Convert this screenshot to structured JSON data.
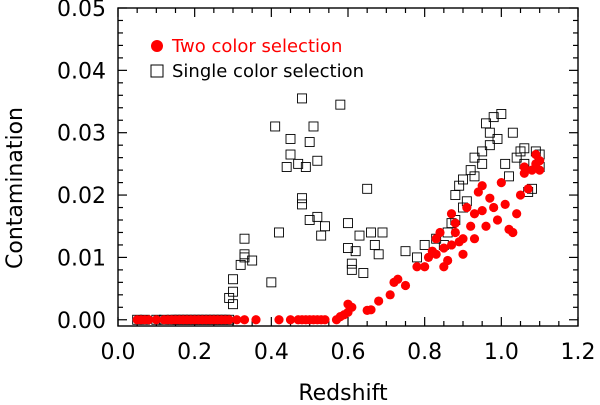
{
  "chart_data": {
    "type": "scatter",
    "title": "",
    "xlabel": "Redshift",
    "ylabel": "Contamination",
    "xlim": [
      0.0,
      1.2
    ],
    "ylim": [
      -0.001,
      0.05
    ],
    "xticks": [
      0.0,
      0.2,
      0.4,
      0.6,
      0.8,
      1.0,
      1.2
    ],
    "xtick_labels": [
      "0.0",
      "0.2",
      "0.4",
      "0.6",
      "0.8",
      "1.0",
      "1.2"
    ],
    "yticks": [
      0.0,
      0.01,
      0.02,
      0.03,
      0.04,
      0.05
    ],
    "ytick_labels": [
      "0.00",
      "0.01",
      "0.02",
      "0.03",
      "0.04",
      "0.05"
    ],
    "legend_position": "top-left",
    "series": [
      {
        "name": "Two color selection",
        "marker": "filled-circle",
        "color": "#ff0000",
        "points": [
          [
            0.05,
            0
          ],
          [
            0.06,
            0
          ],
          [
            0.07,
            0
          ],
          [
            0.08,
            0
          ],
          [
            0.1,
            0
          ],
          [
            0.12,
            0
          ],
          [
            0.13,
            0
          ],
          [
            0.14,
            0
          ],
          [
            0.15,
            0
          ],
          [
            0.16,
            0
          ],
          [
            0.17,
            0
          ],
          [
            0.18,
            0
          ],
          [
            0.19,
            0
          ],
          [
            0.2,
            0
          ],
          [
            0.21,
            0
          ],
          [
            0.22,
            0
          ],
          [
            0.23,
            0
          ],
          [
            0.24,
            0
          ],
          [
            0.25,
            0
          ],
          [
            0.26,
            0
          ],
          [
            0.27,
            0
          ],
          [
            0.28,
            0
          ],
          [
            0.29,
            0
          ],
          [
            0.31,
            0
          ],
          [
            0.33,
            0
          ],
          [
            0.36,
            0
          ],
          [
            0.42,
            0
          ],
          [
            0.45,
            0
          ],
          [
            0.47,
            0
          ],
          [
            0.48,
            0
          ],
          [
            0.49,
            0
          ],
          [
            0.5,
            0
          ],
          [
            0.51,
            0
          ],
          [
            0.52,
            0
          ],
          [
            0.53,
            0
          ],
          [
            0.54,
            0
          ],
          [
            0.57,
            0
          ],
          [
            0.58,
            0.0005
          ],
          [
            0.59,
            0.0008
          ],
          [
            0.6,
            0.0012
          ],
          [
            0.61,
            0.002
          ],
          [
            0.6,
            0.0025
          ],
          [
            0.65,
            0.0015
          ],
          [
            0.66,
            0.0016
          ],
          [
            0.68,
            0.003
          ],
          [
            0.71,
            0.004
          ],
          [
            0.72,
            0.006
          ],
          [
            0.73,
            0.0065
          ],
          [
            0.75,
            0.0055
          ],
          [
            0.78,
            0.0085
          ],
          [
            0.8,
            0.0085
          ],
          [
            0.81,
            0.01
          ],
          [
            0.82,
            0.011
          ],
          [
            0.83,
            0.013
          ],
          [
            0.83,
            0.0105
          ],
          [
            0.84,
            0.014
          ],
          [
            0.85,
            0.0115
          ],
          [
            0.85,
            0.0085
          ],
          [
            0.86,
            0.0095
          ],
          [
            0.87,
            0.012
          ],
          [
            0.87,
            0.017
          ],
          [
            0.88,
            0.0155
          ],
          [
            0.88,
            0.014
          ],
          [
            0.89,
            0.0125
          ],
          [
            0.9,
            0.0105
          ],
          [
            0.9,
            0.013
          ],
          [
            0.91,
            0.018
          ],
          [
            0.92,
            0.015
          ],
          [
            0.93,
            0.017
          ],
          [
            0.93,
            0.013
          ],
          [
            0.94,
            0.0205
          ],
          [
            0.95,
            0.0175
          ],
          [
            0.95,
            0.0215
          ],
          [
            0.96,
            0.015
          ],
          [
            0.97,
            0.0195
          ],
          [
            0.98,
            0.018
          ],
          [
            0.99,
            0.016
          ],
          [
            1.0,
            0.022
          ],
          [
            1.01,
            0.0185
          ],
          [
            1.02,
            0.0145
          ],
          [
            1.03,
            0.014
          ],
          [
            1.04,
            0.017
          ],
          [
            1.05,
            0.02
          ],
          [
            1.06,
            0.0235
          ],
          [
            1.06,
            0.0245
          ],
          [
            1.07,
            0.021
          ],
          [
            1.08,
            0.024
          ],
          [
            1.09,
            0.025
          ],
          [
            1.09,
            0.0265
          ],
          [
            1.1,
            0.0255
          ],
          [
            1.1,
            0.024
          ]
        ]
      },
      {
        "name": "Single color selection",
        "marker": "open-square",
        "color": "#000000",
        "points": [
          [
            0.05,
            0
          ],
          [
            0.07,
            0
          ],
          [
            0.1,
            0
          ],
          [
            0.12,
            0
          ],
          [
            0.14,
            0
          ],
          [
            0.15,
            0
          ],
          [
            0.16,
            0
          ],
          [
            0.17,
            0
          ],
          [
            0.18,
            0
          ],
          [
            0.19,
            0
          ],
          [
            0.2,
            0
          ],
          [
            0.21,
            0
          ],
          [
            0.22,
            0
          ],
          [
            0.23,
            0
          ],
          [
            0.24,
            0
          ],
          [
            0.25,
            0
          ],
          [
            0.26,
            0
          ],
          [
            0.27,
            0
          ],
          [
            0.28,
            0
          ],
          [
            0.29,
            0
          ],
          [
            0.29,
            0.0035
          ],
          [
            0.3,
            0.0025
          ],
          [
            0.3,
            0.0045
          ],
          [
            0.3,
            0.0065
          ],
          [
            0.32,
            0.0088
          ],
          [
            0.33,
            0.01
          ],
          [
            0.33,
            0.0105
          ],
          [
            0.33,
            0.013
          ],
          [
            0.35,
            0.0095
          ],
          [
            0.4,
            0.006
          ],
          [
            0.41,
            0.031
          ],
          [
            0.42,
            0.014
          ],
          [
            0.44,
            0.0245
          ],
          [
            0.45,
            0.029
          ],
          [
            0.45,
            0.0265
          ],
          [
            0.47,
            0.025
          ],
          [
            0.48,
            0.0355
          ],
          [
            0.48,
            0.0195
          ],
          [
            0.48,
            0.0185
          ],
          [
            0.49,
            0.0245
          ],
          [
            0.5,
            0.0285
          ],
          [
            0.5,
            0.016
          ],
          [
            0.51,
            0.031
          ],
          [
            0.52,
            0.0255
          ],
          [
            0.52,
            0.0165
          ],
          [
            0.53,
            0.0135
          ],
          [
            0.54,
            0.015
          ],
          [
            0.58,
            0.0345
          ],
          [
            0.6,
            0.0155
          ],
          [
            0.6,
            0.0115
          ],
          [
            0.61,
            0.008
          ],
          [
            0.61,
            0.009
          ],
          [
            0.62,
            0.011
          ],
          [
            0.63,
            0.0135
          ],
          [
            0.64,
            0.0075
          ],
          [
            0.65,
            0.021
          ],
          [
            0.66,
            0.014
          ],
          [
            0.67,
            0.012
          ],
          [
            0.68,
            0.0105
          ],
          [
            0.69,
            0.014
          ],
          [
            0.75,
            0.011
          ],
          [
            0.78,
            0.01
          ],
          [
            0.8,
            0.012
          ],
          [
            0.83,
            0.013
          ],
          [
            0.85,
            0.012
          ],
          [
            0.86,
            0.014
          ],
          [
            0.87,
            0.0155
          ],
          [
            0.88,
            0.016
          ],
          [
            0.88,
            0.02
          ],
          [
            0.89,
            0.0215
          ],
          [
            0.9,
            0.0225
          ],
          [
            0.9,
            0.018
          ],
          [
            0.91,
            0.019
          ],
          [
            0.92,
            0.024
          ],
          [
            0.93,
            0.023
          ],
          [
            0.93,
            0.026
          ],
          [
            0.95,
            0.027
          ],
          [
            0.95,
            0.025
          ],
          [
            0.96,
            0.0315
          ],
          [
            0.97,
            0.028
          ],
          [
            0.97,
            0.03
          ],
          [
            0.98,
            0.0325
          ],
          [
            0.99,
            0.029
          ],
          [
            1.0,
            0.033
          ],
          [
            1.01,
            0.025
          ],
          [
            1.02,
            0.023
          ],
          [
            1.03,
            0.03
          ],
          [
            1.04,
            0.026
          ],
          [
            1.05,
            0.027
          ],
          [
            1.06,
            0.0275
          ],
          [
            1.06,
            0.025
          ],
          [
            1.07,
            0.0205
          ],
          [
            1.08,
            0.021
          ],
          [
            1.09,
            0.027
          ],
          [
            1.1,
            0.0265
          ],
          [
            1.1,
            0.0245
          ]
        ]
      }
    ]
  }
}
